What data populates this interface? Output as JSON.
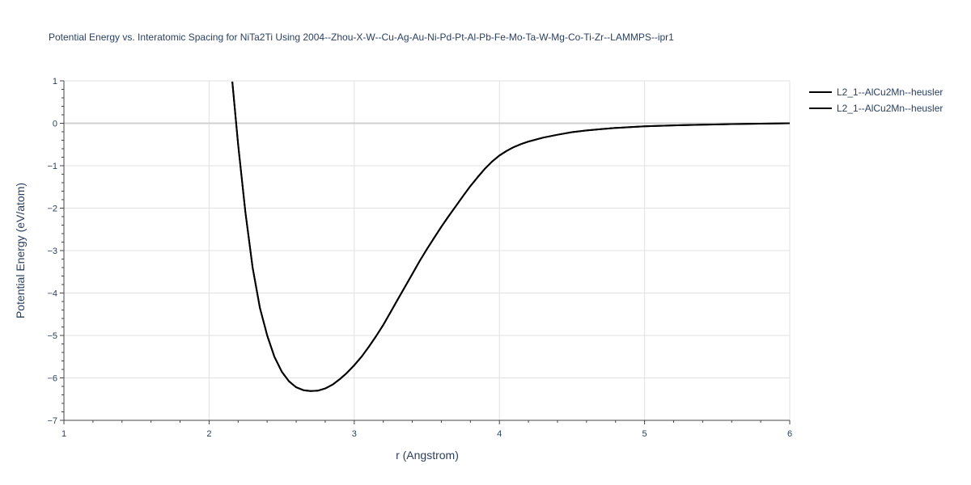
{
  "chart_data": {
    "type": "line",
    "title": "Potential Energy vs. Interatomic Spacing for NiTa2Ti Using 2004--Zhou-X-W--Cu-Ag-Au-Ni-Pd-Pt-Al-Pb-Fe-Mo-Ta-W-Mg-Co-Ti-Zr--LAMMPS--ipr1",
    "xlabel": "r (Angstrom)",
    "ylabel": "Potential Energy (eV/atom)",
    "xlim": [
      1,
      6
    ],
    "ylim": [
      -7,
      1
    ],
    "xticks": [
      1,
      2,
      3,
      4,
      5,
      6
    ],
    "yticks": [
      1,
      0,
      -1,
      -2,
      -3,
      -4,
      -5,
      -6,
      -7
    ],
    "x_tick_labels": [
      "1",
      "2",
      "3",
      "4",
      "5",
      "6"
    ],
    "y_tick_labels": [
      "1",
      "0",
      "−1",
      "−2",
      "−3",
      "−4",
      "−5",
      "−6",
      "−7"
    ],
    "grid": true,
    "legend_position": "top-right",
    "series": [
      {
        "name": "L2_1--AlCu2Mn--heusler",
        "color": "#000000",
        "x": [
          2.16,
          2.2,
          2.25,
          2.3,
          2.35,
          2.4,
          2.45,
          2.5,
          2.55,
          2.6,
          2.65,
          2.7,
          2.75,
          2.8,
          2.85,
          2.9,
          2.95,
          3.0,
          3.05,
          3.1,
          3.15,
          3.2,
          3.25,
          3.3,
          3.35,
          3.4,
          3.45,
          3.5,
          3.55,
          3.6,
          3.65,
          3.7,
          3.75,
          3.8,
          3.85,
          3.9,
          3.95,
          4.0,
          4.05,
          4.1,
          4.15,
          4.2,
          4.3,
          4.4,
          4.5,
          4.6,
          4.7,
          4.8,
          4.9,
          5.0,
          5.2,
          5.4,
          5.6,
          5.8,
          6.0
        ],
        "y": [
          0.98,
          -0.5,
          -2.1,
          -3.4,
          -4.35,
          -5.0,
          -5.5,
          -5.85,
          -6.08,
          -6.22,
          -6.29,
          -6.31,
          -6.3,
          -6.25,
          -6.16,
          -6.03,
          -5.88,
          -5.7,
          -5.5,
          -5.27,
          -5.02,
          -4.75,
          -4.45,
          -4.15,
          -3.85,
          -3.55,
          -3.25,
          -2.97,
          -2.7,
          -2.44,
          -2.19,
          -1.95,
          -1.71,
          -1.48,
          -1.27,
          -1.07,
          -0.9,
          -0.76,
          -0.65,
          -0.56,
          -0.49,
          -0.43,
          -0.34,
          -0.27,
          -0.21,
          -0.17,
          -0.14,
          -0.11,
          -0.09,
          -0.07,
          -0.05,
          -0.035,
          -0.02,
          -0.01,
          0.0
        ]
      },
      {
        "name": "L2_1--AlCu2Mn--heusler",
        "color": "#000000",
        "x": [
          2.16,
          2.2,
          2.25,
          2.3,
          2.35,
          2.4,
          2.45,
          2.5,
          2.55,
          2.6,
          2.65,
          2.7,
          2.75,
          2.8,
          2.85,
          2.9,
          2.95,
          3.0,
          3.05,
          3.1,
          3.15,
          3.2,
          3.25,
          3.3,
          3.35,
          3.4,
          3.45,
          3.5,
          3.55,
          3.6,
          3.65,
          3.7,
          3.75,
          3.8,
          3.85,
          3.9,
          3.95,
          4.0,
          4.05,
          4.1,
          4.15,
          4.2,
          4.3,
          4.4,
          4.5,
          4.6,
          4.7,
          4.8,
          4.9,
          5.0,
          5.2,
          5.4,
          5.6,
          5.8,
          6.0
        ],
        "y": [
          0.98,
          -0.5,
          -2.1,
          -3.4,
          -4.35,
          -5.0,
          -5.5,
          -5.85,
          -6.08,
          -6.22,
          -6.29,
          -6.31,
          -6.3,
          -6.25,
          -6.16,
          -6.03,
          -5.88,
          -5.7,
          -5.5,
          -5.27,
          -5.02,
          -4.75,
          -4.45,
          -4.15,
          -3.85,
          -3.55,
          -3.25,
          -2.97,
          -2.7,
          -2.44,
          -2.19,
          -1.95,
          -1.71,
          -1.48,
          -1.27,
          -1.07,
          -0.9,
          -0.76,
          -0.65,
          -0.56,
          -0.49,
          -0.43,
          -0.34,
          -0.27,
          -0.21,
          -0.17,
          -0.14,
          -0.11,
          -0.09,
          -0.07,
          -0.05,
          -0.035,
          -0.02,
          -0.01,
          0.0
        ]
      }
    ]
  }
}
